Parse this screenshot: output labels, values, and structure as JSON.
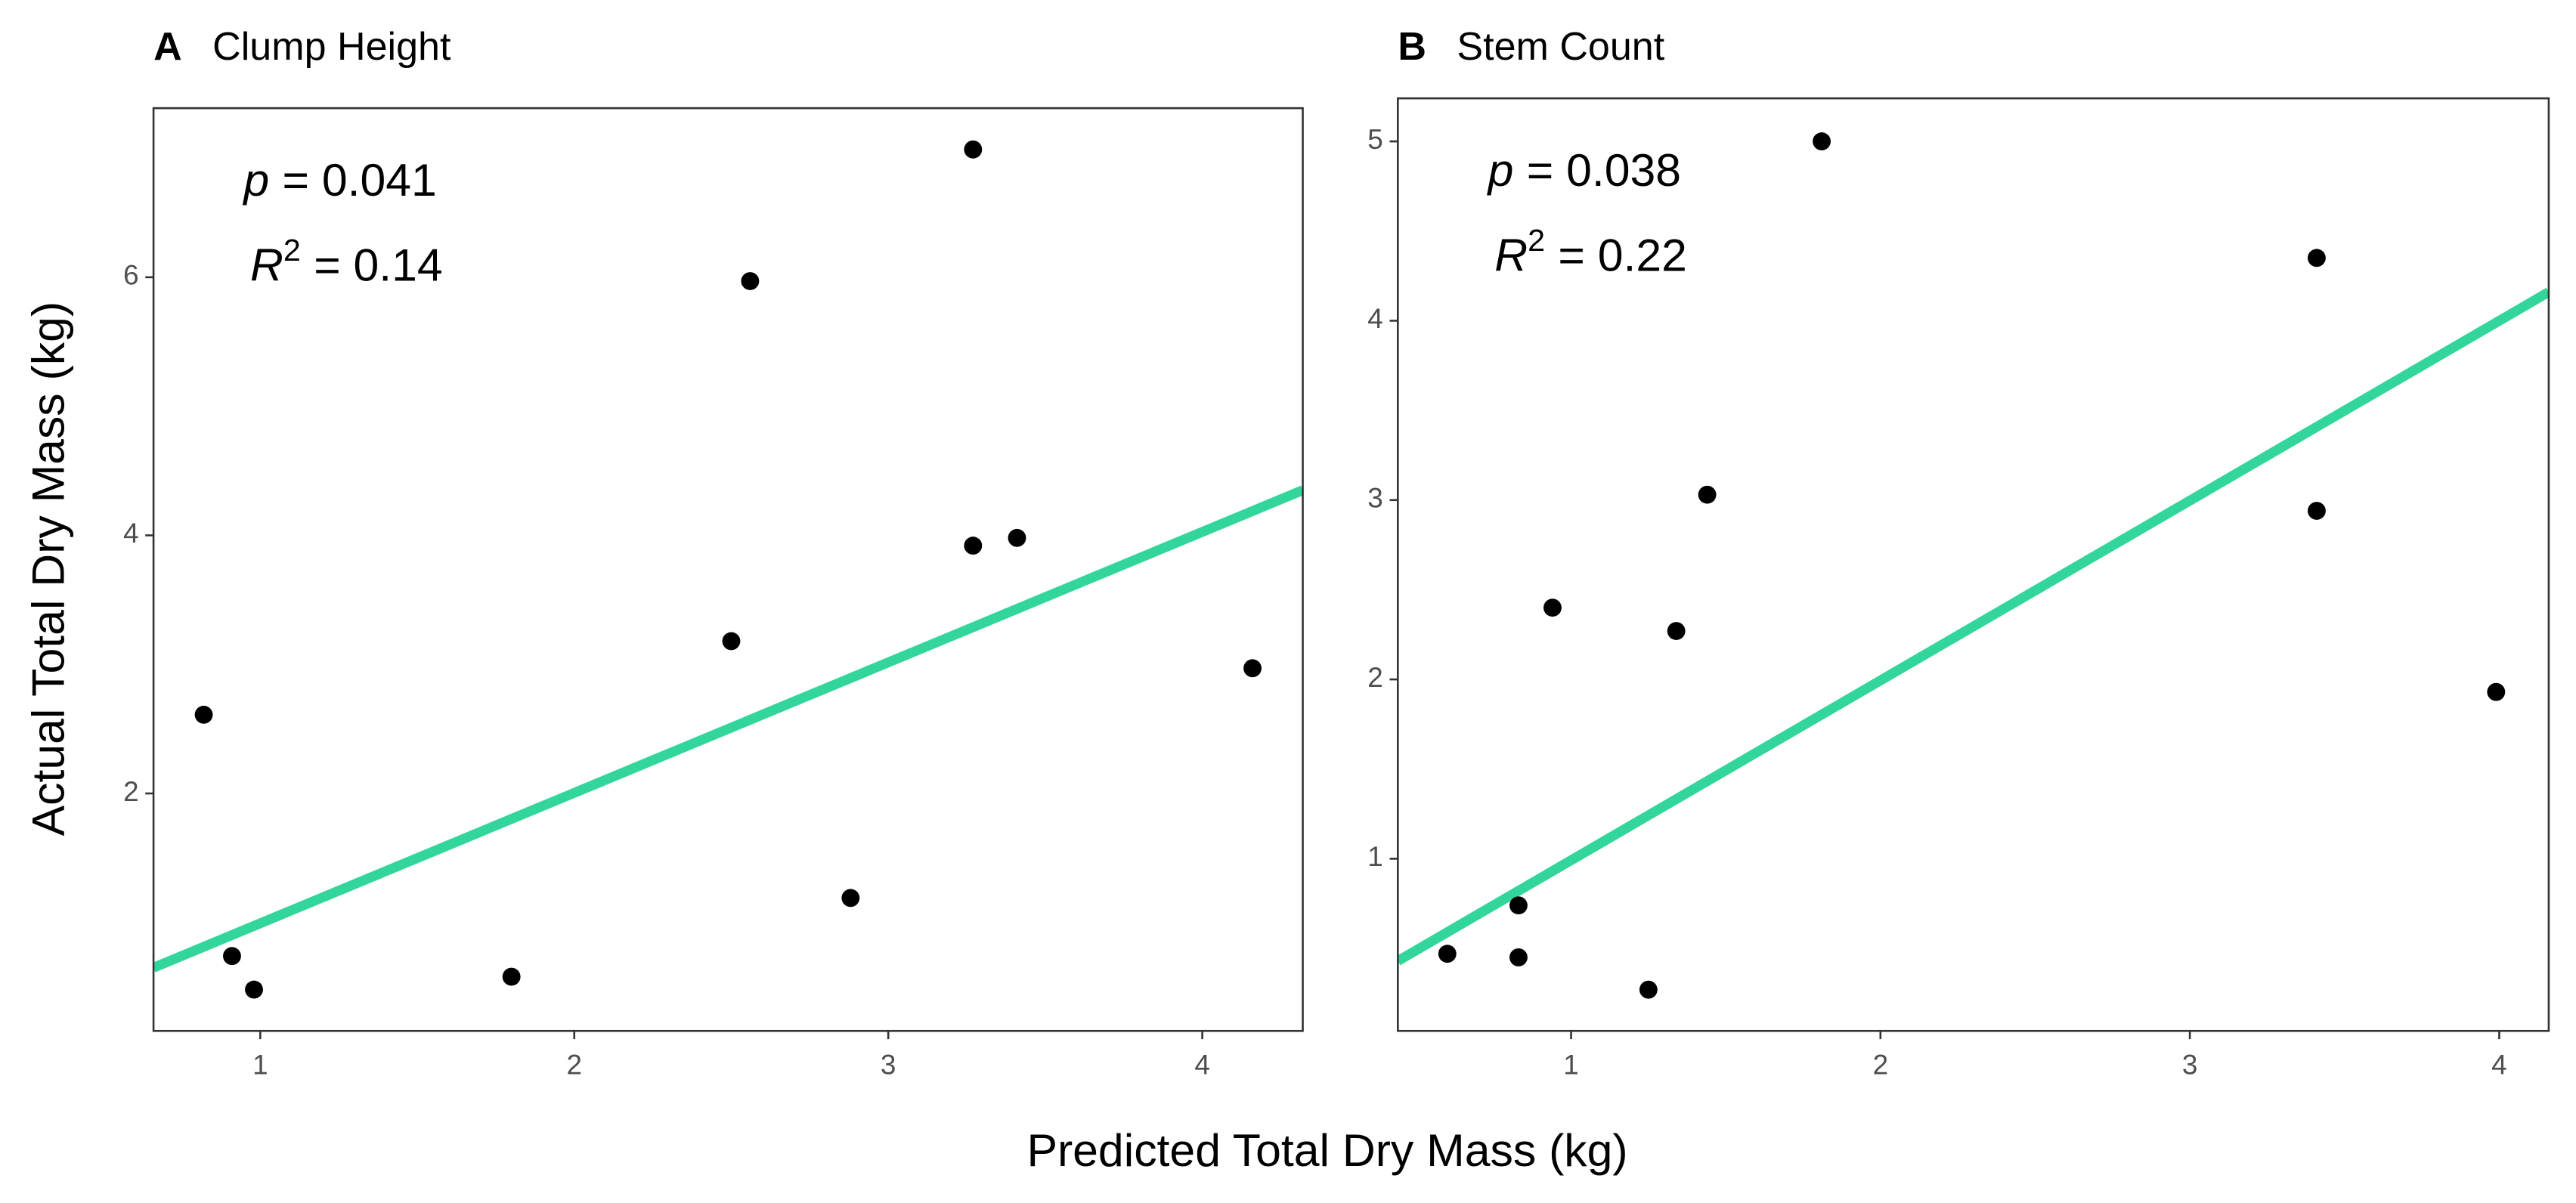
{
  "xlabel": "Predicted Total Dry Mass (kg)",
  "ylabel": "Actual Total Dry Mass (kg)",
  "chart_data": [
    {
      "type": "scatter",
      "panel": "A",
      "title": "Clump Height",
      "annotations": [
        {
          "symbol": "p",
          "text": "= 0.041"
        },
        {
          "symbol": "R",
          "superscript": "2",
          "text": "= 0.14"
        }
      ],
      "x": [
        0.82,
        0.91,
        0.98,
        1.8,
        2.5,
        2.56,
        2.88,
        3.27,
        3.27,
        3.41,
        4.16
      ],
      "y": [
        2.61,
        0.74,
        0.48,
        0.58,
        3.18,
        5.97,
        1.19,
        6.99,
        3.92,
        3.98,
        2.97
      ],
      "color": "#000000",
      "fit": {
        "x": [
          0.66,
          4.32
        ],
        "y": [
          0.65,
          4.35
        ],
        "color": "#33d69a"
      },
      "xlim": [
        0.66,
        4.32
      ],
      "ylim": [
        0.16,
        7.31
      ],
      "xticks": [
        1,
        2,
        3,
        4
      ],
      "yticks": [
        2,
        4,
        6
      ],
      "grid": false
    },
    {
      "type": "scatter",
      "panel": "B",
      "title": "Stem Count",
      "annotations": [
        {
          "symbol": "p",
          "text": "= 0.038"
        },
        {
          "symbol": "R",
          "superscript": "2",
          "text": "= 0.22"
        }
      ],
      "x": [
        0.6,
        0.83,
        0.83,
        0.94,
        1.44,
        1.34,
        1.81,
        1.25,
        3.41,
        3.41,
        3.99
      ],
      "y": [
        0.47,
        0.74,
        0.45,
        2.4,
        3.03,
        2.27,
        5.0,
        0.27,
        4.35,
        2.94,
        1.93
      ],
      "color": "#000000",
      "fit": {
        "x": [
          0.44,
          4.16
        ],
        "y": [
          0.43,
          4.16
        ],
        "color": "#33d69a"
      },
      "xlim": [
        0.44,
        4.16
      ],
      "ylim": [
        0.04,
        5.24
      ],
      "xticks": [
        1,
        2,
        3,
        4
      ],
      "yticks": [
        1,
        2,
        3,
        4,
        5
      ],
      "grid": false
    }
  ]
}
